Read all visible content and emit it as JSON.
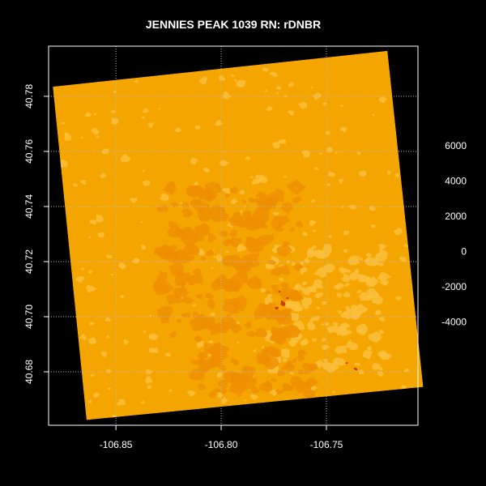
{
  "chart_data": {
    "type": "heatmap",
    "title": "JENNIES PEAK 1039 RN: rDNBR",
    "xlabel": "",
    "ylabel": "",
    "x_ticks": [
      "-106.85",
      "-106.80",
      "-106.75"
    ],
    "x_tick_values": [
      -106.85,
      -106.8,
      -106.75
    ],
    "y_ticks": [
      "40.68",
      "40.70",
      "40.72",
      "40.74",
      "40.76",
      "40.78"
    ],
    "y_tick_values": [
      40.68,
      40.7,
      40.72,
      40.74,
      40.76,
      40.78
    ],
    "xlim": [
      -106.882,
      -106.7065
    ],
    "ylim": [
      40.6606,
      40.7982
    ],
    "grid": true,
    "legend": {
      "position": "right",
      "ticks": [
        "6000",
        "4000",
        "2000",
        "0",
        "-2000",
        "-4000"
      ],
      "tick_values": [
        6000,
        4000,
        2000,
        0,
        -2000,
        -4000
      ]
    },
    "raster_corners": [
      [
        -106.88,
        40.7835
      ],
      [
        -106.721,
        40.7965
      ],
      [
        -106.704,
        40.6745
      ],
      [
        -106.864,
        40.6625
      ]
    ],
    "colors": {
      "background": "#000000",
      "base": "#f5a500",
      "low": "#fbbf3a",
      "moderate": "#ef8f00",
      "high": "#cc3c00",
      "severe": "#8a0e00"
    }
  }
}
